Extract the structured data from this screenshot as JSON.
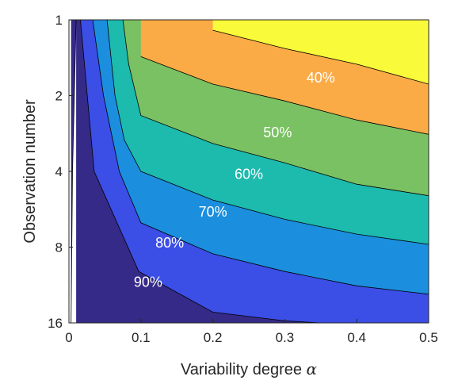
{
  "chart_data": {
    "type": "contour",
    "xlabel": "Variability degree",
    "xlabel_symbol": "α",
    "ylabel": "Observation number",
    "x_ticks": [
      "0",
      "0.1",
      "0.2",
      "0.3",
      "0.4",
      "0.5"
    ],
    "y_ticks": [
      "1",
      "2",
      "4",
      "8",
      "16"
    ],
    "x_values": [
      0,
      0.1,
      0.2,
      0.3,
      0.4,
      0.5
    ],
    "y_values": [
      1,
      2,
      4,
      8,
      16
    ],
    "xlim": [
      0,
      0.5
    ],
    "ylim": [
      1,
      16
    ],
    "y_scale": "log2",
    "y_direction": "reversed",
    "grid": false,
    "levels": [
      {
        "label": "90%",
        "color": "#352a87",
        "boundary": [
          [
            0.003,
            16
          ],
          [
            0.005,
            4
          ],
          [
            0.01,
            1
          ]
        ]
      },
      {
        "label": "80%",
        "color": "#3b4ee6",
        "boundary": [
          [
            0.016,
            1
          ],
          [
            0.035,
            4
          ],
          [
            0.097,
            10
          ],
          [
            0.2,
            14.5
          ],
          [
            0.3,
            15.7
          ],
          [
            0.4,
            16.3
          ],
          [
            0.44,
            16.4
          ]
        ]
      },
      {
        "label": "70%",
        "color": "#1c8ede",
        "boundary": [
          [
            0.033,
            1
          ],
          [
            0.048,
            2
          ],
          [
            0.07,
            4
          ],
          [
            0.1,
            6.4
          ],
          [
            0.2,
            8.5
          ],
          [
            0.3,
            10
          ],
          [
            0.4,
            11.4
          ],
          [
            0.5,
            12.3
          ]
        ]
      },
      {
        "label": "60%",
        "color": "#1dbaae",
        "boundary": [
          [
            0.053,
            1
          ],
          [
            0.064,
            2
          ],
          [
            0.077,
            3
          ],
          [
            0.1,
            4
          ],
          [
            0.2,
            5.2
          ],
          [
            0.3,
            6.2
          ],
          [
            0.4,
            7.1
          ],
          [
            0.5,
            7.8
          ]
        ]
      },
      {
        "label": "50%",
        "color": "#79c162",
        "boundary": [
          [
            0.075,
            1
          ],
          [
            0.083,
            1.5
          ],
          [
            0.1,
            2.4
          ],
          [
            0.2,
            3.1
          ],
          [
            0.3,
            3.7
          ],
          [
            0.4,
            4.5
          ],
          [
            0.5,
            5
          ]
        ]
      },
      {
        "label": "40%",
        "color": "#fbab45",
        "boundary": [
          [
            0.1,
            1.4
          ],
          [
            0.2,
            1.8
          ],
          [
            0.3,
            2.1
          ],
          [
            0.4,
            2.5
          ],
          [
            0.5,
            2.85
          ]
        ]
      },
      {
        "label": "",
        "color": "#f9fb3a",
        "boundary": [
          [
            0.2,
            1.1
          ],
          [
            0.3,
            1.3
          ],
          [
            0.4,
            1.5
          ],
          [
            0.5,
            1.8
          ]
        ]
      }
    ],
    "contour_labels": [
      {
        "text": "40%",
        "x": 0.35,
        "y": 1.7
      },
      {
        "text": "50%",
        "x": 0.29,
        "y": 2.8
      },
      {
        "text": "60%",
        "x": 0.25,
        "y": 4.1
      },
      {
        "text": "70%",
        "x": 0.2,
        "y": 5.8
      },
      {
        "text": "80%",
        "x": 0.14,
        "y": 7.7
      },
      {
        "text": "90%",
        "x": 0.11,
        "y": 11
      }
    ]
  }
}
